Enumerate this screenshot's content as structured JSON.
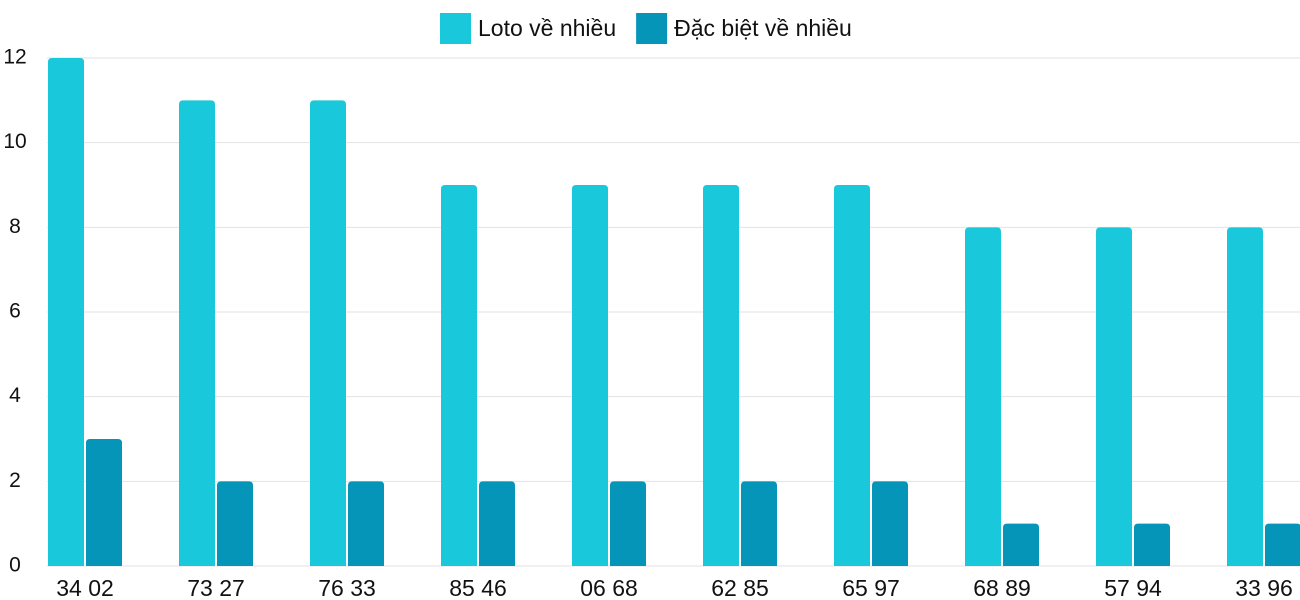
{
  "chart_data": {
    "type": "bar",
    "categories": [
      "34 02",
      "73 27",
      "76 33",
      "85 46",
      "06 68",
      "62 85",
      "65 97",
      "68 89",
      "57 94",
      "33 96"
    ],
    "series": [
      {
        "name": "Loto về nhiều",
        "color": "#1ac8db",
        "values": [
          12,
          11,
          11,
          9,
          9,
          9,
          9,
          8,
          8,
          8
        ]
      },
      {
        "name": "Đặc biệt về nhiều",
        "color": "#0495b8",
        "values": [
          3,
          2,
          2,
          2,
          2,
          2,
          2,
          1,
          1,
          1
        ]
      }
    ],
    "ylim": [
      0,
      12
    ],
    "yticks": [
      0,
      2,
      4,
      6,
      8,
      10,
      12
    ],
    "grid": true
  }
}
